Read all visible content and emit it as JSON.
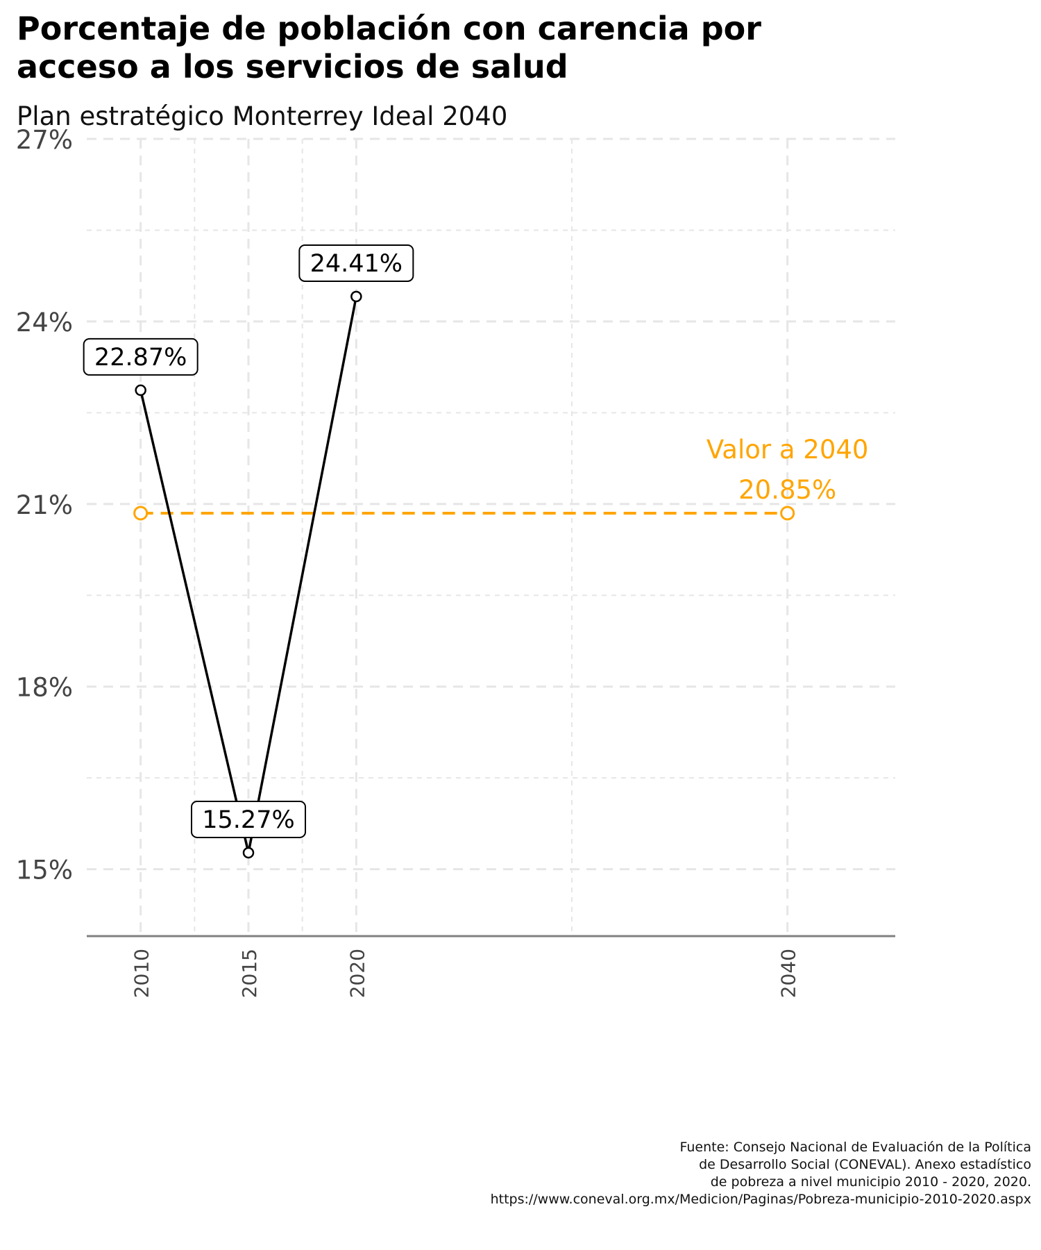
{
  "title_line1": "Porcentaje de población con carencia por",
  "title_line2": "acceso a los servicios de salud",
  "subtitle": "Plan estratégico Monterrey Ideal 2040",
  "caption": [
    "Fuente: Consejo Nacional de Evaluación de la Política",
    "de Desarrollo Social (CONEVAL). Anexo estadístico",
    "de pobreza a nivel municipio 2010 - 2020, 2020.",
    "https://www.coneval.org.mx/Medicion/Paginas/Pobreza-municipio-2010-2020.aspx"
  ],
  "colors": {
    "series": "#000000",
    "target": "#FFA500",
    "grid": "#e6e6e6",
    "axis": "#808080",
    "tick_text": "#444444"
  },
  "chart_data": {
    "type": "line",
    "xlim": [
      2007.5,
      2045
    ],
    "ylim": [
      13.9,
      27
    ],
    "y_ticks": [
      15,
      18,
      21,
      24,
      27
    ],
    "y_tick_labels": [
      "15%",
      "18%",
      "21%",
      "24%",
      "27%"
    ],
    "x_ticks": [
      2010,
      2015,
      2020,
      2040
    ],
    "x_tick_labels": [
      "2010",
      "2015",
      "2020",
      "2040"
    ],
    "grid": true,
    "series": [
      {
        "x": [
          2010,
          2015,
          2020
        ],
        "y": [
          22.87,
          15.27,
          24.41
        ],
        "labels": [
          "22.87%",
          "15.27%",
          "24.41%"
        ],
        "style": "solid"
      }
    ],
    "target": {
      "x": [
        2010,
        2040
      ],
      "y": [
        20.85,
        20.85
      ],
      "style": "dashed",
      "label_line1": "Valor a 2040",
      "label_line2": "20.85%"
    }
  }
}
